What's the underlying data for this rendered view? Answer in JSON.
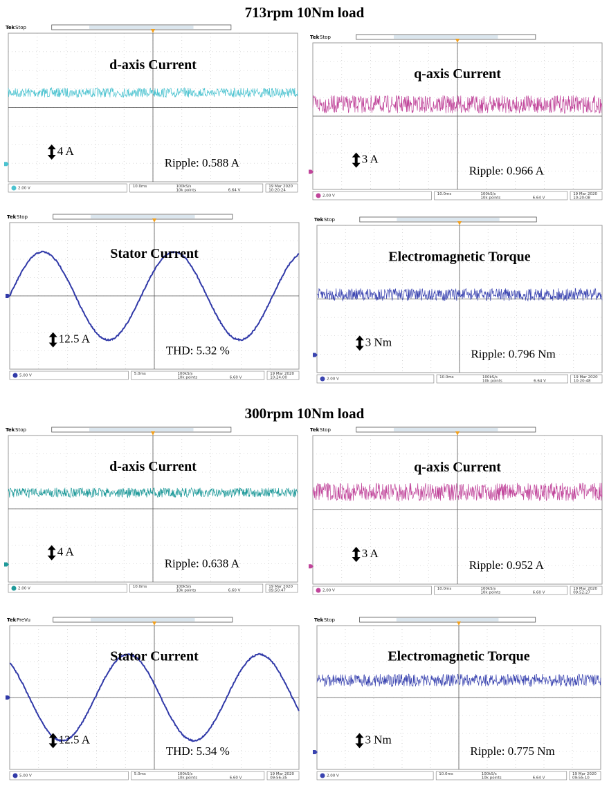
{
  "sections": [
    {
      "title": "713rpm 10Nm load",
      "panels": [
        {
          "brand": "Tek",
          "status": "Stop",
          "title": "d-axis Current",
          "scale": "4 A",
          "note": "Ripple: 0.588 A",
          "footer": [
            "2.00 V",
            "10.0ms",
            "100kS/s",
            "10k points",
            "6.64 V",
            "19 Mar 2020",
            "10:20:24"
          ]
        },
        {
          "brand": "Tek",
          "status": "Stop",
          "title": "q-axis Current",
          "scale": "3 A",
          "note": "Ripple: 0.966 A",
          "footer": [
            "2.00 V",
            "10.0ms",
            "100kS/s",
            "10k points",
            "6.64 V",
            "19 Mar 2020",
            "10:20:08"
          ]
        },
        {
          "brand": "Tek",
          "status": "Stop",
          "title": "Stator Current",
          "scale": "12.5 A",
          "note": "THD: 5.32 %",
          "footer": [
            "5.00 V",
            "5.0ms",
            "100kS/s",
            "10k points",
            "6.60 V",
            "19 Mar 2020",
            "10:24:00"
          ]
        },
        {
          "brand": "Tek",
          "status": "Stop",
          "title": "Electromagnetic Torque",
          "scale": "3 Nm",
          "note": "Ripple: 0.796 Nm",
          "footer": [
            "2.00 V",
            "10.0ms",
            "100kS/s",
            "10k points",
            "6.64 V",
            "19 Mar 2020",
            "10:20:48"
          ]
        }
      ]
    },
    {
      "title": "300rpm 10Nm load",
      "panels": [
        {
          "brand": "Tek",
          "status": "Stop",
          "title": "d-axis Current",
          "scale": "4 A",
          "note": "Ripple: 0.638 A",
          "footer": [
            "2.00 V",
            "10.0ms",
            "100kS/s",
            "10k points",
            "6.60 V",
            "19 Mar 2020",
            "09:50:47"
          ]
        },
        {
          "brand": "Tek",
          "status": "Stop",
          "title": "q-axis Current",
          "scale": "3 A",
          "note": "Ripple: 0.952 A",
          "footer": [
            "2.00 V",
            "10.0ms",
            "100kS/s",
            "10k points",
            "6.60 V",
            "19 Mar 2020",
            "09:52:27"
          ]
        },
        {
          "brand": "Tek",
          "status": "PreVu",
          "title": "Stator Current",
          "scale": "12.5 A",
          "note": "THD: 5.34 %",
          "footer": [
            "5.00 V",
            "5.0ms",
            "100kS/s",
            "10k points",
            "6.60 V",
            "19 Mar 2020",
            "09:56:35"
          ]
        },
        {
          "brand": "Tek",
          "status": "Stop",
          "title": "Electromagnetic Torque",
          "scale": "3 Nm",
          "note": "Ripple: 0.775 Nm",
          "footer": [
            "2.00 V",
            "10.0ms",
            "100kS/s",
            "10k points",
            "6.64 V",
            "19 Mar 2020",
            "09:55:10"
          ]
        }
      ]
    }
  ]
}
